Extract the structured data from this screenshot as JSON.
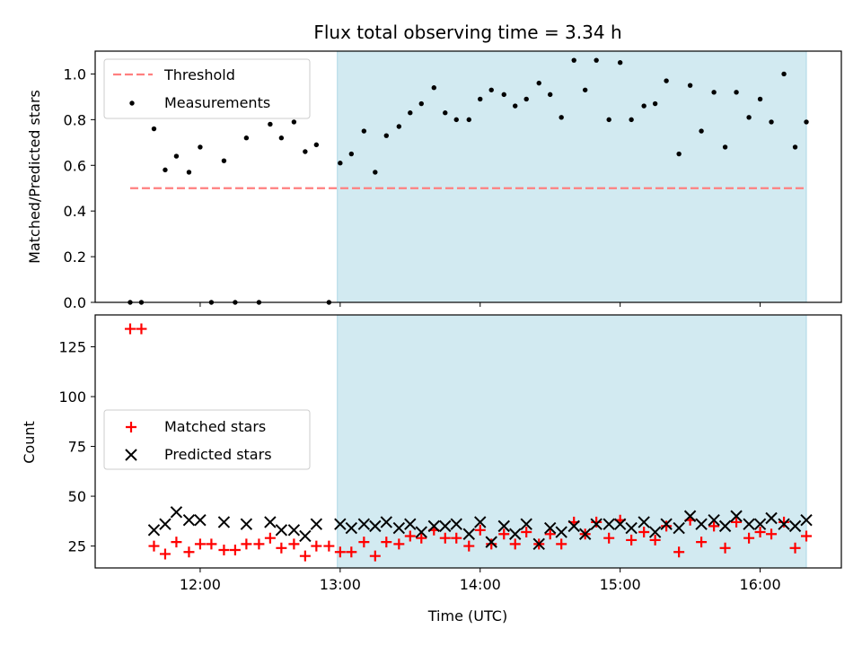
{
  "chart_data": {
    "title": "Flux total observing time = 3.34 h",
    "xlabel": "Time (UTC)",
    "x_tick_labels": [
      "12:00",
      "13:00",
      "14:00",
      "15:00",
      "16:00"
    ],
    "x_range_hours": [
      11.25,
      16.58
    ],
    "shaded_span_hours": [
      12.98,
      16.33
    ],
    "shade_color": "#add8e6",
    "panels": [
      {
        "type": "scatter",
        "ylabel": "Matched/Predicted stars",
        "ylim": [
          0,
          1.1
        ],
        "y_ticks": [
          "0.0",
          "0.2",
          "0.4",
          "0.6",
          "0.8",
          "1.0"
        ],
        "y_tick_values": [
          0,
          0.2,
          0.4,
          0.6,
          0.8,
          1.0
        ],
        "threshold": {
          "name": "Threshold",
          "value": 0.5,
          "x_range_hours": [
            11.5,
            16.33
          ],
          "color": "#ff7f7f"
        },
        "series": [
          {
            "name": "Measurements",
            "color": "#000000",
            "x": [
              11.5,
              11.58,
              11.67,
              11.75,
              11.83,
              11.92,
              12.0,
              12.08,
              12.17,
              12.25,
              12.33,
              12.42,
              12.5,
              12.58,
              12.67,
              12.75,
              12.83,
              12.92,
              13.0,
              13.08,
              13.17,
              13.25,
              13.33,
              13.42,
              13.5,
              13.58,
              13.67,
              13.75,
              13.83,
              13.92,
              14.0,
              14.08,
              14.17,
              14.25,
              14.33,
              14.42,
              14.5,
              14.58,
              14.67,
              14.75,
              14.83,
              14.92,
              15.0,
              15.08,
              15.17,
              15.25,
              15.33,
              15.42,
              15.5,
              15.58,
              15.67,
              15.75,
              15.83,
              15.92,
              16.0,
              16.08,
              16.17,
              16.25,
              16.33
            ],
            "y": [
              0,
              0,
              0.76,
              0.58,
              0.64,
              0.57,
              0.68,
              0,
              0.62,
              0,
              0.72,
              0,
              0.78,
              0.72,
              0.79,
              0.66,
              0.69,
              0,
              0.61,
              0.65,
              0.75,
              0.57,
              0.73,
              0.77,
              0.83,
              0.87,
              0.94,
              0.83,
              0.8,
              0.8,
              0.89,
              0.93,
              0.91,
              0.86,
              0.89,
              0.96,
              0.91,
              0.81,
              1.06,
              0.93,
              1.06,
              0.8,
              1.05,
              0.8,
              0.86,
              0.87,
              0.97,
              0.65,
              0.95,
              0.75,
              0.92,
              0.68,
              0.92,
              0.81,
              0.89,
              0.79,
              1.0,
              0.68,
              0.79
            ]
          }
        ],
        "legend": {
          "position": "upper left",
          "entries": [
            "Threshold",
            "Measurements"
          ]
        }
      },
      {
        "type": "scatter",
        "ylabel": "Count",
        "ylim": [
          14,
          141
        ],
        "y_ticks": [
          "25",
          "50",
          "75",
          "100",
          "125"
        ],
        "y_tick_values": [
          25,
          50,
          75,
          100,
          125
        ],
        "series": [
          {
            "name": "Matched stars",
            "marker": "plus",
            "color": "#ff0000",
            "x": [
              11.5,
              11.58,
              11.67,
              11.75,
              11.83,
              11.92,
              12.0,
              12.08,
              12.17,
              12.25,
              12.33,
              12.42,
              12.5,
              12.58,
              12.67,
              12.75,
              12.83,
              12.92,
              13.0,
              13.08,
              13.17,
              13.25,
              13.33,
              13.42,
              13.5,
              13.58,
              13.67,
              13.75,
              13.83,
              13.92,
              14.0,
              14.08,
              14.17,
              14.25,
              14.33,
              14.42,
              14.5,
              14.58,
              14.67,
              14.75,
              14.83,
              14.92,
              15.0,
              15.08,
              15.17,
              15.25,
              15.33,
              15.42,
              15.5,
              15.58,
              15.67,
              15.75,
              15.83,
              15.92,
              16.0,
              16.08,
              16.17,
              16.25,
              16.33
            ],
            "y": [
              134,
              134,
              25,
              21,
              27,
              22,
              26,
              26,
              23,
              23,
              26,
              26,
              29,
              24,
              26,
              20,
              25,
              25,
              22,
              22,
              27,
              20,
              27,
              26,
              30,
              29,
              33,
              29,
              29,
              25,
              33,
              26,
              31,
              26,
              32,
              26,
              31,
              26,
              37,
              31,
              37,
              29,
              38,
              28,
              32,
              28,
              35,
              22,
              38,
              27,
              35,
              24,
              37,
              29,
              32,
              31,
              37,
              24,
              30
            ]
          },
          {
            "name": "Predicted stars",
            "marker": "x",
            "color": "#000000",
            "x": [
              11.67,
              11.75,
              11.83,
              11.92,
              12.0,
              12.17,
              12.33,
              12.5,
              12.58,
              12.67,
              12.75,
              12.83,
              13.0,
              13.08,
              13.17,
              13.25,
              13.33,
              13.42,
              13.5,
              13.58,
              13.67,
              13.75,
              13.83,
              13.92,
              14.0,
              14.08,
              14.17,
              14.25,
              14.33,
              14.42,
              14.5,
              14.58,
              14.67,
              14.75,
              14.83,
              14.92,
              15.0,
              15.08,
              15.17,
              15.25,
              15.33,
              15.42,
              15.5,
              15.58,
              15.67,
              15.75,
              15.83,
              15.92,
              16.0,
              16.08,
              16.17,
              16.25,
              16.33
            ],
            "y": [
              33,
              36,
              42,
              38,
              38,
              37,
              36,
              37,
              33,
              33,
              30,
              36,
              36,
              34,
              36,
              35,
              37,
              34,
              36,
              32,
              35,
              35,
              36,
              31,
              37,
              27,
              35,
              31,
              36,
              26,
              34,
              32,
              35,
              31,
              36,
              36,
              36,
              34,
              37,
              32,
              36,
              34,
              40,
              36,
              38,
              35,
              40,
              36,
              36,
              39,
              36,
              35,
              38
            ]
          }
        ],
        "legend": {
          "position": "center left",
          "entries": [
            "Matched stars",
            "Predicted stars"
          ]
        }
      }
    ]
  }
}
